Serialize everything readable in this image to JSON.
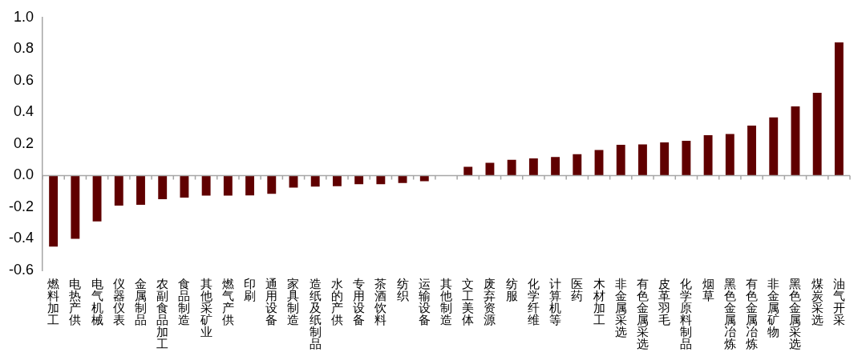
{
  "chart_data": {
    "type": "bar",
    "categories": [
      "燃料加工",
      "电热产供",
      "电气机械",
      "仪器仪表",
      "金属制品",
      "农副食品加工",
      "食品制造",
      "其他采矿业",
      "燃气产供",
      "印刷",
      "通用设备",
      "家具制造",
      "造纸及纸制品",
      "水的产供",
      "专用设备",
      "茶酒饮料",
      "纺织",
      "运输设备",
      "其他制造",
      "文工美体",
      "废弃资源",
      "纺服",
      "化学纤维",
      "计算机等",
      "医药",
      "木材加工",
      "非金属采选",
      "有色金属采选",
      "皮革羽毛",
      "化学原料制品",
      "烟草",
      "黑色金属冶炼",
      "有色金属冶炼",
      "非金属矿物",
      "黑色金属采选",
      "煤炭采选",
      "油气开采"
    ],
    "values": [
      -0.45,
      -0.4,
      -0.29,
      -0.19,
      -0.185,
      -0.15,
      -0.14,
      -0.127,
      -0.127,
      -0.125,
      -0.115,
      -0.076,
      -0.07,
      -0.068,
      -0.055,
      -0.055,
      -0.047,
      -0.036,
      null,
      0.055,
      0.08,
      0.1,
      0.109,
      0.117,
      0.135,
      0.162,
      0.195,
      0.197,
      0.21,
      0.22,
      0.255,
      0.263,
      0.316,
      0.368,
      0.437,
      0.523,
      0.842
    ],
    "color": "#600000",
    "ylim": [
      -0.6,
      1.0
    ],
    "yticks": [
      {
        "value": -0.6,
        "label": "-0.6"
      },
      {
        "value": -0.4,
        "label": "-0.4"
      },
      {
        "value": -0.2,
        "label": "-0.2"
      },
      {
        "value": 0,
        "label": "0.0"
      },
      {
        "value": 0.2,
        "label": "0.2"
      },
      {
        "value": 0.4,
        "label": "0.4"
      },
      {
        "value": 0.6,
        "label": "0.6"
      },
      {
        "value": 0.8,
        "label": "0.8"
      },
      {
        "value": 1.0,
        "label": "1.0"
      }
    ]
  }
}
